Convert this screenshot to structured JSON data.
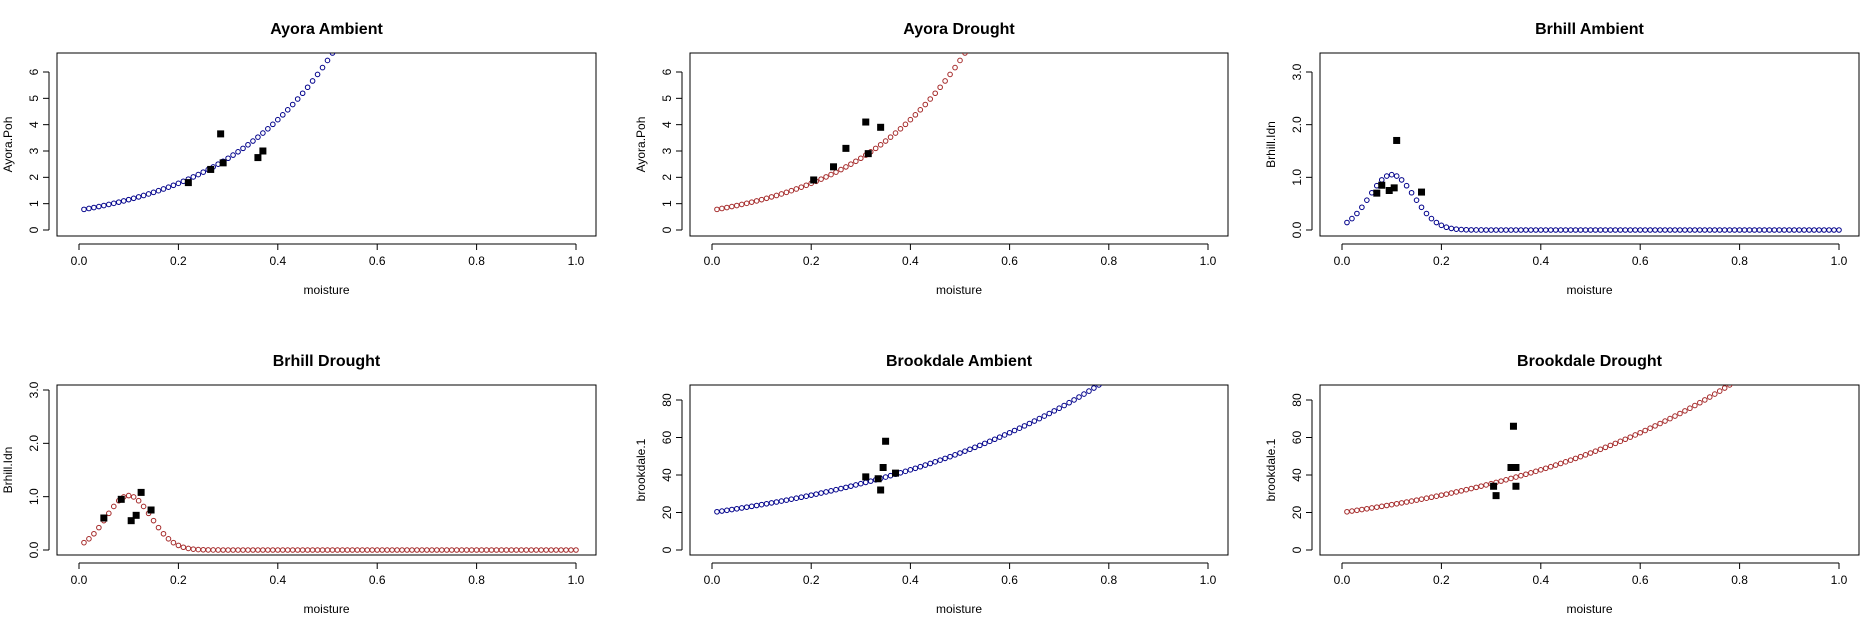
{
  "chart_data": [
    {
      "type": "scatter",
      "title": "Ayora Ambient",
      "xlabel": "moisture",
      "ylabel": "Ayora.Poh",
      "xlim": [
        0,
        1
      ],
      "ylim": [
        0,
        6
      ],
      "xticks": [
        "0.0",
        "0.2",
        "0.4",
        "0.6",
        "0.8",
        "1.0"
      ],
      "yticks": [
        "0",
        "1",
        "2",
        "3",
        "4",
        "5",
        "6"
      ],
      "curve": {
        "model": "exponential",
        "a": 0.75,
        "b": 4.3,
        "color": "#00008B"
      },
      "points": [
        {
          "x": 0.22,
          "y": 1.8
        },
        {
          "x": 0.265,
          "y": 2.3
        },
        {
          "x": 0.285,
          "y": 3.65
        },
        {
          "x": 0.29,
          "y": 2.55
        },
        {
          "x": 0.36,
          "y": 2.75
        },
        {
          "x": 0.37,
          "y": 3.0
        }
      ]
    },
    {
      "type": "scatter",
      "title": "Ayora Drought",
      "xlabel": "moisture",
      "ylabel": "Ayora.Poh",
      "xlim": [
        0,
        1
      ],
      "ylim": [
        0,
        6
      ],
      "xticks": [
        "0.0",
        "0.2",
        "0.4",
        "0.6",
        "0.8",
        "1.0"
      ],
      "yticks": [
        "0",
        "1",
        "2",
        "3",
        "4",
        "5",
        "6"
      ],
      "curve": {
        "model": "exponential",
        "a": 0.75,
        "b": 4.3,
        "color": "#A52A2A"
      },
      "points": [
        {
          "x": 0.205,
          "y": 1.9
        },
        {
          "x": 0.245,
          "y": 2.4
        },
        {
          "x": 0.27,
          "y": 3.1
        },
        {
          "x": 0.31,
          "y": 4.1
        },
        {
          "x": 0.315,
          "y": 2.9
        },
        {
          "x": 0.34,
          "y": 3.9
        }
      ]
    },
    {
      "type": "scatter",
      "title": "Brhill Ambient",
      "xlabel": "moisture",
      "ylabel": "Brhill.Idn",
      "xlim": [
        0,
        1
      ],
      "ylim": [
        0,
        3
      ],
      "xticks": [
        "0.0",
        "0.2",
        "0.4",
        "0.6",
        "0.8",
        "1.0"
      ],
      "yticks": [
        "0.0",
        "1.0",
        "2.0",
        "3.0"
      ],
      "curve": {
        "model": "gaussian",
        "peak": 1.05,
        "mu": 0.1,
        "sigma": 0.045,
        "color": "#00008B"
      },
      "points": [
        {
          "x": 0.07,
          "y": 0.7
        },
        {
          "x": 0.08,
          "y": 0.85
        },
        {
          "x": 0.095,
          "y": 0.75
        },
        {
          "x": 0.105,
          "y": 0.8
        },
        {
          "x": 0.11,
          "y": 1.7
        },
        {
          "x": 0.16,
          "y": 0.72
        }
      ]
    },
    {
      "type": "scatter",
      "title": "Brhill Drought",
      "xlabel": "moisture",
      "ylabel": "Brhill.Idn",
      "xlim": [
        0,
        1
      ],
      "ylim": [
        0,
        3
      ],
      "xticks": [
        "0.0",
        "0.2",
        "0.4",
        "0.6",
        "0.8",
        "1.0"
      ],
      "yticks": [
        "0.0",
        "1.0",
        "2.0",
        "3.0"
      ],
      "curve": {
        "model": "gaussian",
        "peak": 1.02,
        "mu": 0.1,
        "sigma": 0.045,
        "color": "#A52A2A"
      },
      "points": [
        {
          "x": 0.05,
          "y": 0.6
        },
        {
          "x": 0.085,
          "y": 0.95
        },
        {
          "x": 0.105,
          "y": 0.55
        },
        {
          "x": 0.115,
          "y": 0.65
        },
        {
          "x": 0.125,
          "y": 1.08
        },
        {
          "x": 0.145,
          "y": 0.75
        }
      ]
    },
    {
      "type": "scatter",
      "title": "Brookdale Ambient",
      "xlabel": "moisture",
      "ylabel": "brookdale.1",
      "xlim": [
        0,
        1
      ],
      "ylim": [
        0,
        85
      ],
      "xticks": [
        "0.0",
        "0.2",
        "0.4",
        "0.6",
        "0.8",
        "1.0"
      ],
      "yticks": [
        "0",
        "20",
        "40",
        "60",
        "80"
      ],
      "curve": {
        "model": "exponential",
        "a": 20,
        "b": 1.9,
        "color": "#00008B"
      },
      "points": [
        {
          "x": 0.31,
          "y": 39
        },
        {
          "x": 0.335,
          "y": 38
        },
        {
          "x": 0.34,
          "y": 32
        },
        {
          "x": 0.345,
          "y": 44
        },
        {
          "x": 0.35,
          "y": 58
        },
        {
          "x": 0.37,
          "y": 41
        }
      ]
    },
    {
      "type": "scatter",
      "title": "Brookdale Drought",
      "xlabel": "moisture",
      "ylabel": "brookdale.1",
      "xlim": [
        0,
        1
      ],
      "ylim": [
        0,
        85
      ],
      "xticks": [
        "0.0",
        "0.2",
        "0.4",
        "0.6",
        "0.8",
        "1.0"
      ],
      "yticks": [
        "0",
        "20",
        "40",
        "60",
        "80"
      ],
      "curve": {
        "model": "exponential",
        "a": 20,
        "b": 1.9,
        "color": "#A52A2A"
      },
      "points": [
        {
          "x": 0.305,
          "y": 34
        },
        {
          "x": 0.31,
          "y": 29
        },
        {
          "x": 0.34,
          "y": 44
        },
        {
          "x": 0.345,
          "y": 66
        },
        {
          "x": 0.35,
          "y": 44
        },
        {
          "x": 0.35,
          "y": 34
        }
      ]
    }
  ]
}
